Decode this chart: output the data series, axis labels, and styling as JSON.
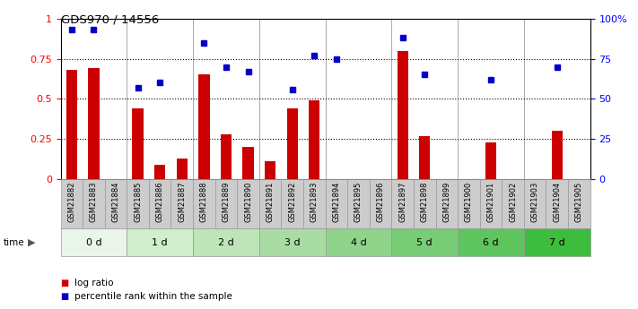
{
  "title": "GDS970 / 14556",
  "samples": [
    "GSM21882",
    "GSM21883",
    "GSM21884",
    "GSM21885",
    "GSM21886",
    "GSM21887",
    "GSM21888",
    "GSM21889",
    "GSM21890",
    "GSM21891",
    "GSM21892",
    "GSM21893",
    "GSM21894",
    "GSM21895",
    "GSM21896",
    "GSM21897",
    "GSM21898",
    "GSM21899",
    "GSM21900",
    "GSM21901",
    "GSM21902",
    "GSM21903",
    "GSM21904",
    "GSM21905"
  ],
  "log_ratio": [
    0.68,
    0.69,
    0.0,
    0.44,
    0.09,
    0.13,
    0.65,
    0.28,
    0.2,
    0.11,
    0.44,
    0.49,
    0.0,
    0.0,
    0.0,
    0.8,
    0.27,
    0.0,
    0.0,
    0.23,
    0.0,
    0.0,
    0.3,
    0.0
  ],
  "percentile_rank": [
    0.93,
    0.93,
    0.0,
    0.57,
    0.6,
    0.0,
    0.85,
    0.7,
    0.67,
    0.0,
    0.56,
    0.77,
    0.75,
    0.0,
    0.0,
    0.88,
    0.65,
    0.0,
    0.0,
    0.62,
    0.0,
    0.0,
    0.7,
    0.0
  ],
  "time_groups": {
    "0 d": [
      0,
      1,
      2
    ],
    "1 d": [
      3,
      4,
      5
    ],
    "2 d": [
      6,
      7,
      8
    ],
    "3 d": [
      9,
      10,
      11
    ],
    "4 d": [
      12,
      13,
      14
    ],
    "5 d": [
      15,
      16,
      17
    ],
    "6 d": [
      18,
      19,
      20
    ],
    "7 d": [
      21,
      22,
      23
    ]
  },
  "group_colors": [
    "#e8f5e8",
    "#d0edcc",
    "#bde5b8",
    "#a8dca3",
    "#90d48c",
    "#78cc75",
    "#5ec45e",
    "#3dbd3d"
  ],
  "tick_box_color": "#cccccc",
  "tick_box_edge_color": "#999999",
  "bar_color": "#cc0000",
  "marker_color": "#0000cc",
  "ylim_left": [
    0,
    1.0
  ],
  "ylim_right": [
    0,
    100
  ],
  "yticks_left": [
    0,
    0.25,
    0.5,
    0.75,
    1.0
  ],
  "ytick_labels_left": [
    "0",
    "0.25",
    "0.5",
    "0.75",
    "1"
  ],
  "yticks_right": [
    0,
    25,
    50,
    75,
    100
  ],
  "ytick_labels_right": [
    "0",
    "25",
    "50",
    "75",
    "100%"
  ],
  "dotted_lines": [
    0.25,
    0.5,
    0.75
  ],
  "legend_log_ratio": "log ratio",
  "legend_percentile": "percentile rank within the sample",
  "time_label": "time",
  "bar_width": 0.5
}
